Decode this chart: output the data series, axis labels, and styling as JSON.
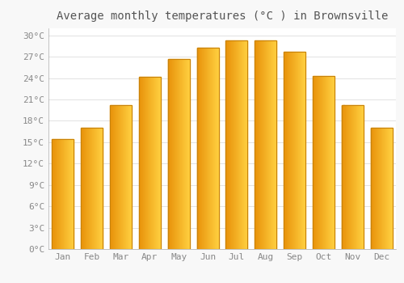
{
  "title": "Average monthly temperatures (°C ) in Brownsville",
  "months": [
    "Jan",
    "Feb",
    "Mar",
    "Apr",
    "May",
    "Jun",
    "Jul",
    "Aug",
    "Sep",
    "Oct",
    "Nov",
    "Dec"
  ],
  "values": [
    15.5,
    17.0,
    20.2,
    24.2,
    26.7,
    28.3,
    29.3,
    29.3,
    27.7,
    24.3,
    20.2,
    17.0
  ],
  "bar_color_left": "#E8920A",
  "bar_color_right": "#FFD040",
  "bar_edge_color": "#C8820A",
  "background_color": "#F8F8F8",
  "plot_bg_color": "#FFFFFF",
  "grid_color": "#DDDDDD",
  "text_color": "#888888",
  "title_color": "#555555",
  "ylim": [
    0,
    31
  ],
  "yticks": [
    0,
    3,
    6,
    9,
    12,
    15,
    18,
    21,
    24,
    27,
    30
  ],
  "ytick_labels": [
    "0°C",
    "3°C",
    "6°C",
    "9°C",
    "12°C",
    "15°C",
    "18°C",
    "21°C",
    "24°C",
    "27°C",
    "30°C"
  ],
  "title_fontsize": 10,
  "tick_fontsize": 8,
  "font_family": "monospace",
  "bar_width": 0.75
}
